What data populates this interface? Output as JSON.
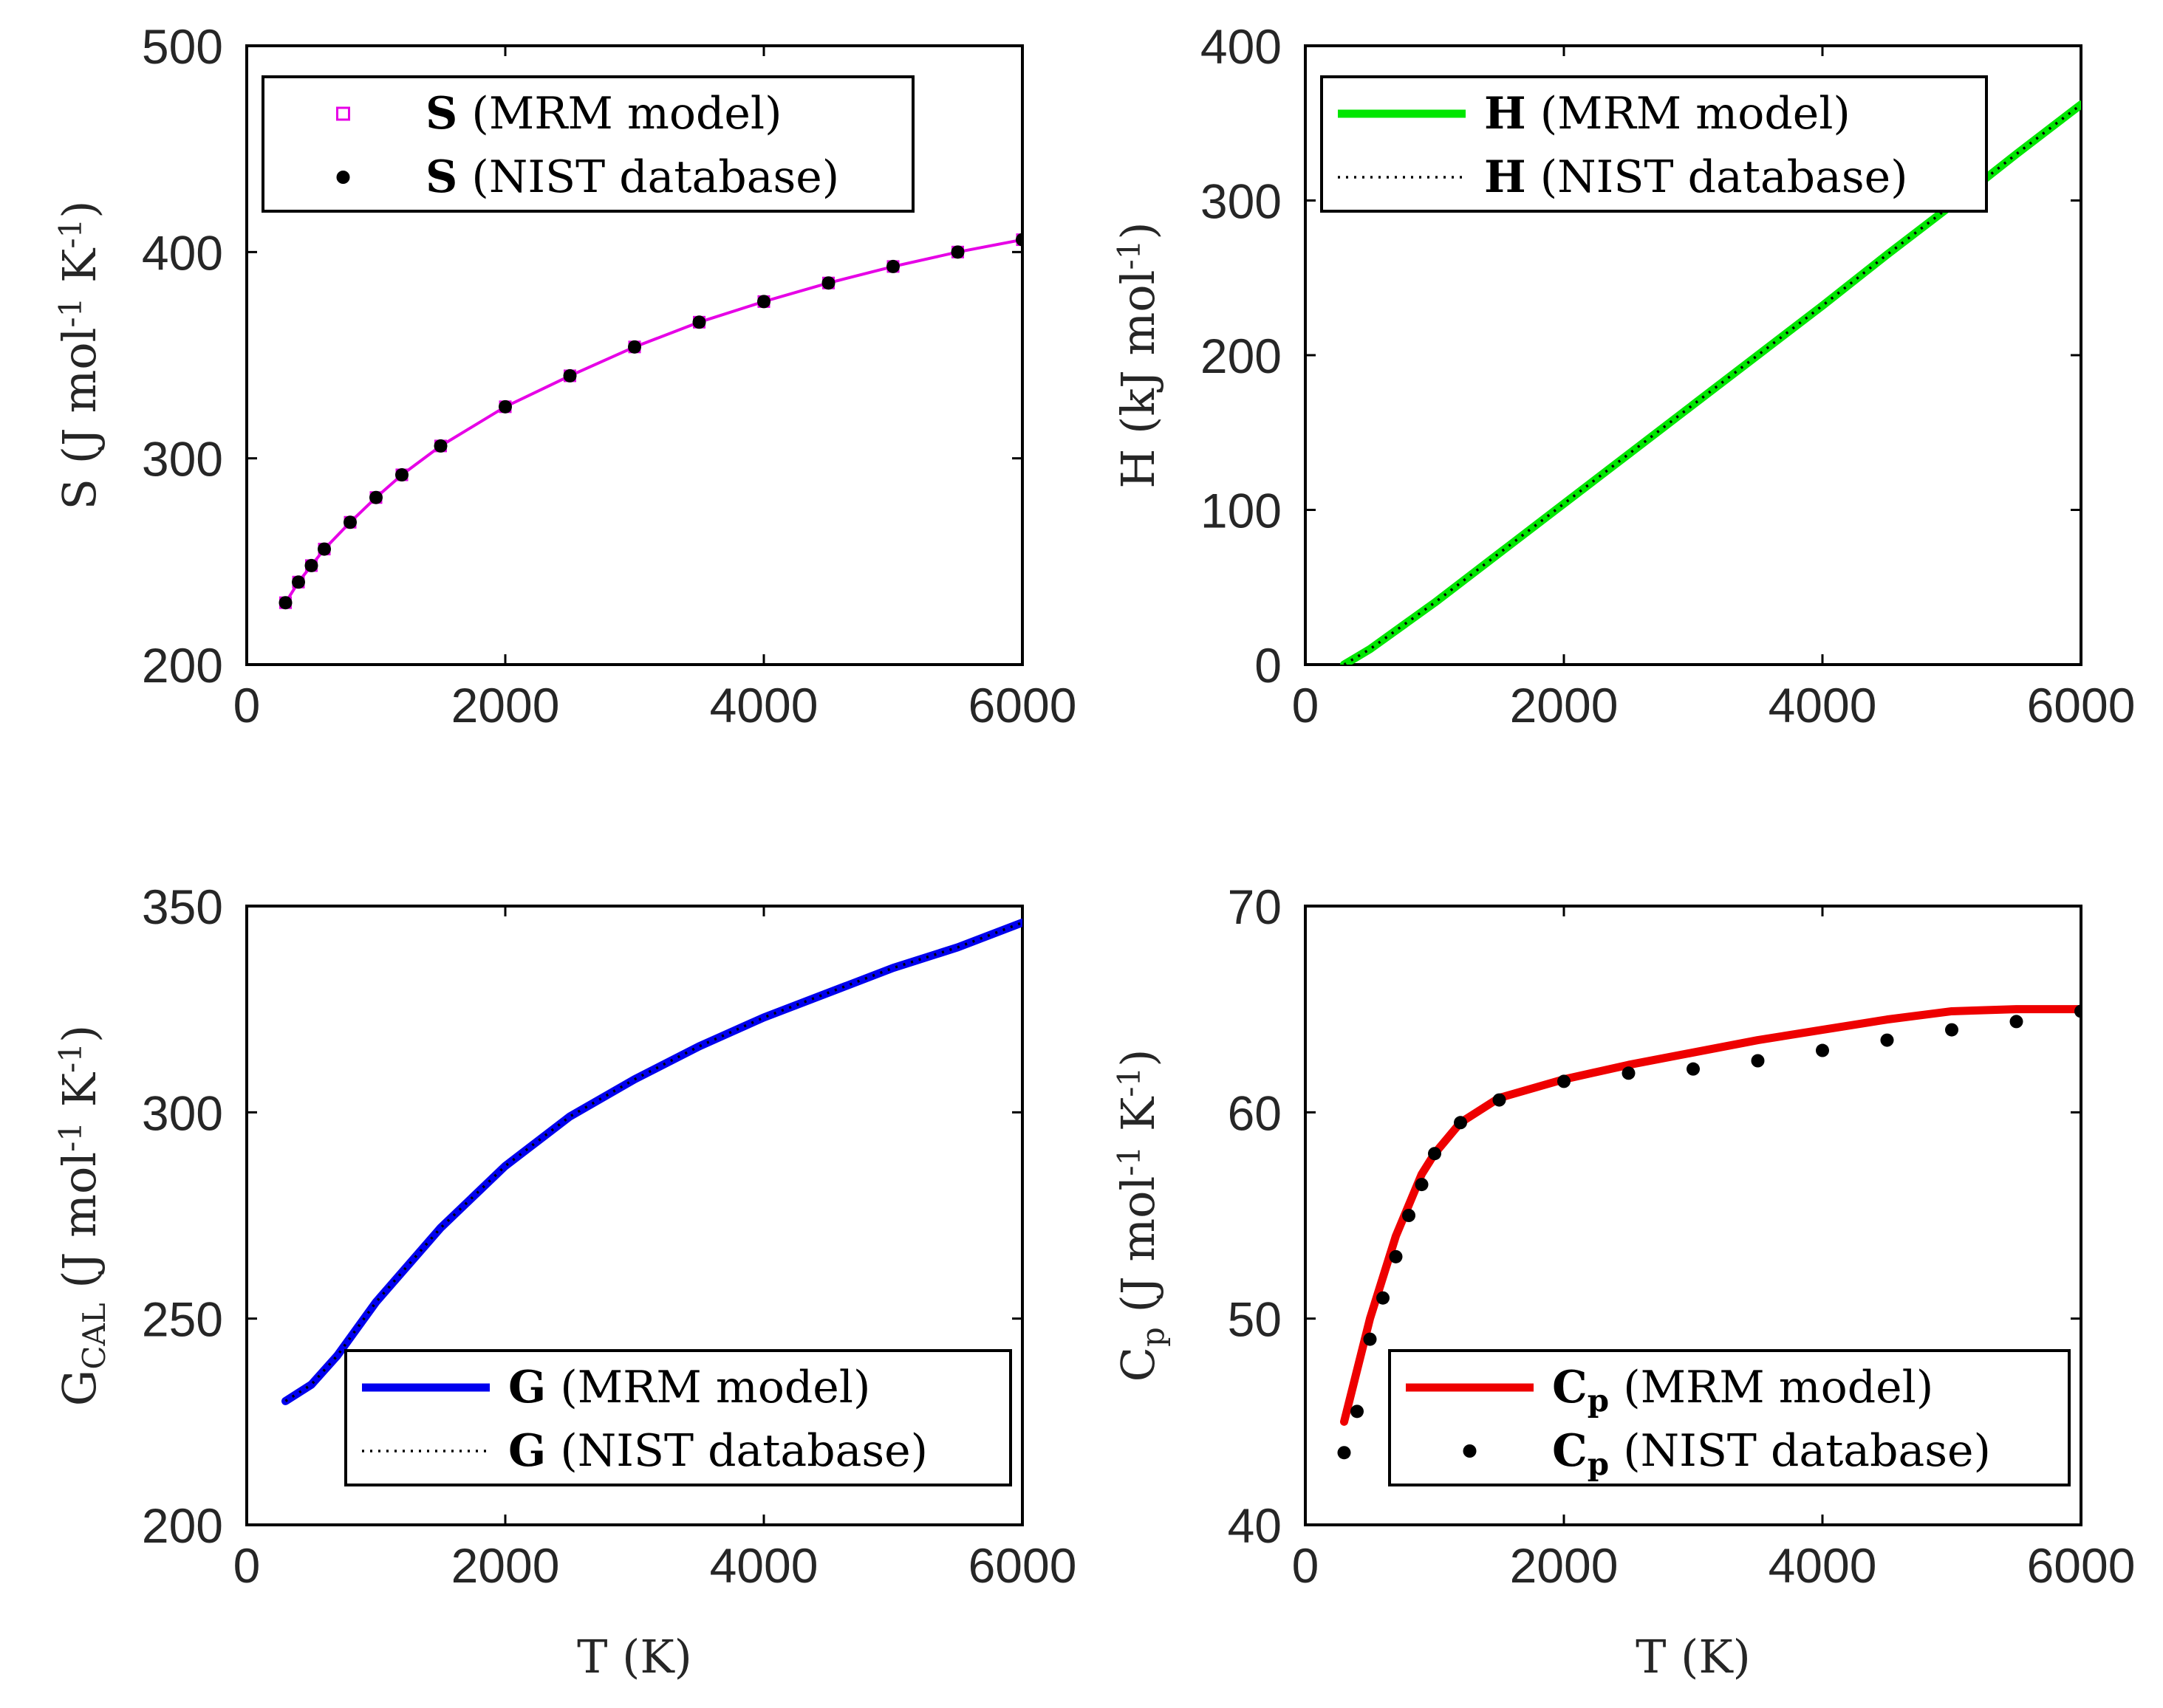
{
  "chart_data": [
    {
      "id": "S",
      "type": "line",
      "ylabel": "S (J mol-1 K-1)",
      "ylabel_parts": {
        "main": "S (J mol",
        "sup1": "-1",
        "mid": " K",
        "sup2": "-1",
        "end": ")"
      },
      "xlabel": "",
      "xlim": [
        0,
        6000
      ],
      "ylim": [
        200,
        500
      ],
      "xticks": [
        0,
        2000,
        4000,
        6000
      ],
      "yticks": [
        200,
        300,
        400,
        500
      ],
      "xtick_labels": [
        "0",
        "2000",
        "4000",
        "6000"
      ],
      "ytick_labels": [
        "200",
        "300",
        "400",
        "500"
      ],
      "legend_position": "top-left",
      "series": [
        {
          "name": "S (MRM model)",
          "legend_bold": "S",
          "legend_rest": " (MRM model)",
          "style": "squares",
          "color": "#e600e6",
          "x": [
            300,
            400,
            500,
            600,
            800,
            1000,
            1200,
            1500,
            2000,
            2500,
            3000,
            3500,
            4000,
            4500,
            5000,
            5500,
            6000
          ],
          "y": [
            230,
            240,
            248,
            256,
            269,
            281,
            292,
            306,
            325,
            340,
            354,
            366,
            376,
            385,
            393,
            400,
            406
          ]
        },
        {
          "name": "S (NIST database)",
          "legend_bold": "S",
          "legend_rest": " (NIST database)",
          "style": "dots",
          "color": "#000000",
          "x": [
            300,
            400,
            500,
            600,
            800,
            1000,
            1200,
            1500,
            2000,
            2500,
            3000,
            3500,
            4000,
            4500,
            5000,
            5500,
            6000
          ],
          "y": [
            230,
            240,
            248,
            256,
            269,
            281,
            292,
            306,
            325,
            340,
            354,
            366,
            376,
            385,
            393,
            400,
            406
          ]
        }
      ]
    },
    {
      "id": "H",
      "type": "line",
      "ylabel": "H (kJ mol-1)",
      "ylabel_parts": {
        "main": "H (kJ mol",
        "sup1": "-1",
        "mid": ")",
        "sup2": "",
        "end": ""
      },
      "xlabel": "",
      "xlim": [
        0,
        6000
      ],
      "ylim": [
        0,
        400
      ],
      "xticks": [
        0,
        2000,
        4000,
        6000
      ],
      "yticks": [
        0,
        100,
        200,
        300,
        400
      ],
      "xtick_labels": [
        "0",
        "2000",
        "4000",
        "6000"
      ],
      "ytick_labels": [
        "0",
        "100",
        "200",
        "300",
        "400"
      ],
      "legend_position": "top-left",
      "series": [
        {
          "name": "H (MRM model)",
          "legend_bold": "H",
          "legend_rest": " (MRM model)",
          "style": "thick-line",
          "color": "#00e600",
          "x": [
            300,
            500,
            1000,
            1500,
            2000,
            2500,
            3000,
            3500,
            4000,
            4500,
            5000,
            5500,
            6000
          ],
          "y": [
            0,
            10,
            40,
            72,
            104,
            136,
            168,
            200,
            232,
            265,
            297,
            330,
            362
          ]
        },
        {
          "name": "H (NIST database)",
          "legend_bold": "H",
          "legend_rest": " (NIST database)",
          "style": "dotted-line",
          "color": "#000000",
          "x": [
            300,
            500,
            1000,
            1500,
            2000,
            2500,
            3000,
            3500,
            4000,
            4500,
            5000,
            5500,
            6000
          ],
          "y": [
            0,
            10,
            40,
            72,
            104,
            136,
            168,
            200,
            232,
            265,
            297,
            330,
            362
          ]
        }
      ]
    },
    {
      "id": "G",
      "type": "line",
      "ylabel": "GCAL (J mol-1 K-1)",
      "ylabel_parts": {
        "main": "G",
        "sub": "CAL",
        "after": " (J mol",
        "sup1": "-1",
        "mid": " K",
        "sup2": "-1",
        "end": ")"
      },
      "xlabel": "T (K)",
      "xlim": [
        0,
        6000
      ],
      "ylim": [
        200,
        350
      ],
      "xticks": [
        0,
        2000,
        4000,
        6000
      ],
      "yticks": [
        200,
        250,
        300,
        350
      ],
      "xtick_labels": [
        "0",
        "2000",
        "4000",
        "6000"
      ],
      "ytick_labels": [
        "200",
        "250",
        "300",
        "350"
      ],
      "legend_position": "bottom-right",
      "series": [
        {
          "name": "G (MRM model)",
          "legend_bold": "G",
          "legend_rest": " (MRM model)",
          "style": "thick-line",
          "color": "#0000ee",
          "x": [
            300,
            500,
            700,
            1000,
            1500,
            2000,
            2500,
            3000,
            3500,
            4000,
            4500,
            5000,
            5500,
            6000
          ],
          "y": [
            230,
            234,
            241,
            254,
            272,
            287,
            299,
            308,
            316,
            323,
            329,
            335,
            340,
            346
          ]
        },
        {
          "name": "G (NIST database)",
          "legend_bold": "G",
          "legend_rest": " (NIST database)",
          "style": "dotted-line",
          "color": "#000000",
          "x": [
            300,
            500,
            700,
            1000,
            1500,
            2000,
            2500,
            3000,
            3500,
            4000,
            4500,
            5000,
            5500,
            6000
          ],
          "y": [
            230,
            234,
            241,
            254,
            272,
            287,
            299,
            308,
            316,
            323,
            329,
            335,
            340,
            346
          ]
        }
      ]
    },
    {
      "id": "Cp",
      "type": "line",
      "ylabel": "Cp (J mol-1 K-1)",
      "ylabel_parts": {
        "main": "C",
        "sub": "p",
        "after": " (J mol",
        "sup1": "-1",
        "mid": " K",
        "sup2": "-1",
        "end": ")"
      },
      "xlabel": "T (K)",
      "xlim": [
        0,
        6000
      ],
      "ylim": [
        40,
        70
      ],
      "xticks": [
        0,
        2000,
        4000,
        6000
      ],
      "yticks": [
        40,
        50,
        60,
        70
      ],
      "xtick_labels": [
        "0",
        "2000",
        "4000",
        "6000"
      ],
      "ytick_labels": [
        "40",
        "50",
        "60",
        "70"
      ],
      "legend_position": "bottom-right",
      "series": [
        {
          "name": "Cp (MRM model)",
          "legend_bold": "C",
          "legend_sub": "p",
          "legend_rest": " (MRM model)",
          "style": "thick-line",
          "color": "#ee0000",
          "x": [
            300,
            400,
            500,
            600,
            700,
            800,
            900,
            1000,
            1200,
            1500,
            2000,
            2500,
            3000,
            3500,
            4000,
            4500,
            5000,
            5500,
            6000
          ],
          "y": [
            45,
            47.5,
            50,
            52,
            54,
            55.5,
            57,
            58,
            59.5,
            60.7,
            61.6,
            62.3,
            62.9,
            63.5,
            64.0,
            64.5,
            64.9,
            65.0,
            65.0
          ]
        },
        {
          "name": "Cp (NIST database)",
          "legend_bold": "C",
          "legend_sub": "p",
          "legend_rest": " (NIST database)",
          "style": "dots",
          "color": "#000000",
          "x": [
            300,
            400,
            500,
            600,
            700,
            800,
            900,
            1000,
            1200,
            1500,
            2000,
            2500,
            3000,
            3500,
            4000,
            4500,
            5000,
            5500,
            6000
          ],
          "y": [
            43.5,
            45.5,
            49,
            51,
            53,
            55,
            56.5,
            58,
            59.5,
            60.6,
            61.5,
            61.9,
            62.1,
            62.5,
            63.0,
            63.5,
            64.0,
            64.4,
            64.9
          ]
        }
      ]
    }
  ]
}
